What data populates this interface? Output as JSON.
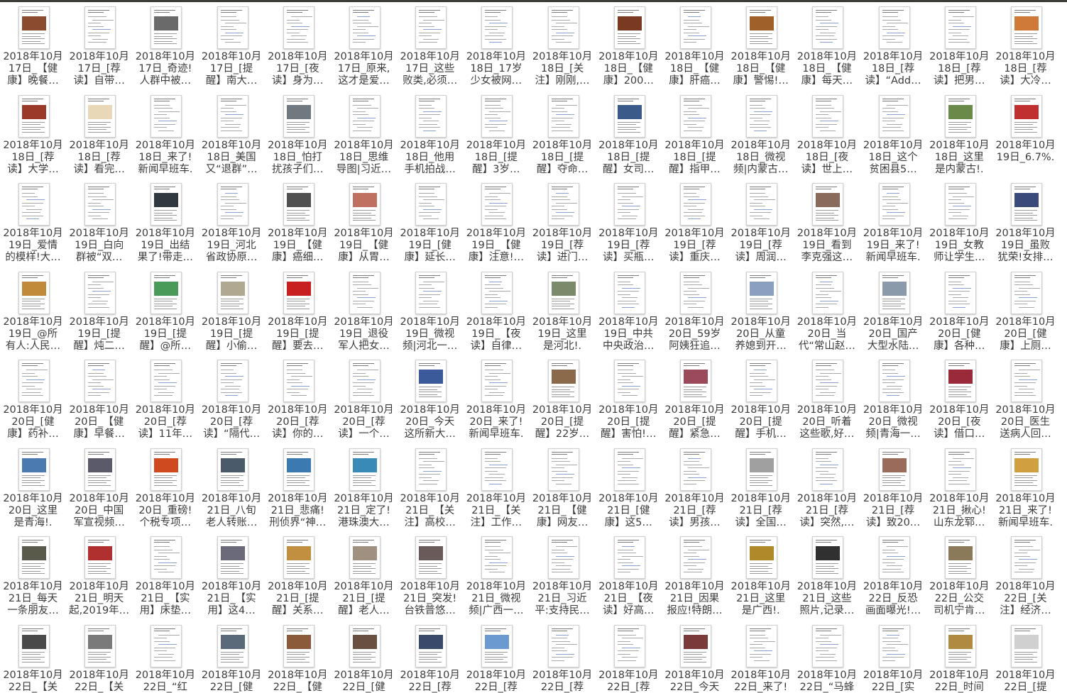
{
  "window": {
    "title": ""
  },
  "files": [
    {
      "name": "2018年10月\n17日_【健\n康】晚餐…",
      "thumb": "photo",
      "color": "#8a4b2f"
    },
    {
      "name": "2018年10月\n17日_[荐\n读】自带…",
      "thumb": "text",
      "color": ""
    },
    {
      "name": "2018年10月\n17日_奇迹!\n人群中被…",
      "thumb": "photo",
      "color": "#6a6a6a"
    },
    {
      "name": "2018年10月\n17日_[提\n醒】南大…",
      "thumb": "text",
      "color": ""
    },
    {
      "name": "2018年10月\n17日_[夜\n读】身为…",
      "thumb": "text",
      "color": ""
    },
    {
      "name": "2018年10月\n17日_原来,\n这才是爱…",
      "thumb": "text",
      "color": ""
    },
    {
      "name": "2018年10月\n17日_这些\n败类,必须…",
      "thumb": "text",
      "color": ""
    },
    {
      "name": "2018年10月\n18日_17岁\n少女被网…",
      "thumb": "text",
      "color": ""
    },
    {
      "name": "2018年10月\n18日_[关\n注】刚刚,…",
      "thumb": "text",
      "color": ""
    },
    {
      "name": "2018年10月\n18日_【健\n康】200…",
      "thumb": "photo",
      "color": "#7a3a22"
    },
    {
      "name": "2018年10月\n18日_【健\n康】肝癌…",
      "thumb": "text",
      "color": ""
    },
    {
      "name": "2018年10月\n18日_【健\n康】警惕!…",
      "thumb": "photo",
      "color": "#a0602a"
    },
    {
      "name": "2018年10月\n18日_【健\n康】每天…",
      "thumb": "text",
      "color": ""
    },
    {
      "name": "2018年10月\n18日_[荐\n读】“Add…",
      "thumb": "text",
      "color": ""
    },
    {
      "name": "2018年10月\n18日_[荐\n读】把男…",
      "thumb": "text",
      "color": ""
    },
    {
      "name": "2018年10月\n18日_[荐\n读】大冷…",
      "thumb": "photo",
      "color": "#d07a3a"
    },
    {
      "name": "2018年10月\n18日_[荐\n读】大学…",
      "thumb": "photo",
      "color": "#9c3a2a"
    },
    {
      "name": "2018年10月\n18日_[荐\n读】看完…",
      "thumb": "photo",
      "color": "#e8d8b8"
    },
    {
      "name": "2018年10月\n18日_来了!\n新闻早班车.",
      "thumb": "text",
      "color": ""
    },
    {
      "name": "2018年10月\n18日_美国\n又“退群”…",
      "thumb": "text",
      "color": ""
    },
    {
      "name": "2018年10月\n18日_怕打\n扰孩子们…",
      "thumb": "photo",
      "color": "#707880"
    },
    {
      "name": "2018年10月\n18日_思维\n导图|习近…",
      "thumb": "text",
      "color": ""
    },
    {
      "name": "2018年10月\n18日_他用\n手机拍战…",
      "thumb": "text",
      "color": ""
    },
    {
      "name": "2018年10月\n18日_[提\n醒】3岁…",
      "thumb": "text",
      "color": ""
    },
    {
      "name": "2018年10月\n18日_[提\n醒】夺命…",
      "thumb": "text",
      "color": ""
    },
    {
      "name": "2018年10月\n18日_[提\n醒】女司…",
      "thumb": "photo",
      "color": "#3a5a8a"
    },
    {
      "name": "2018年10月\n18日_[提\n醒】指甲…",
      "thumb": "text",
      "color": ""
    },
    {
      "name": "2018年10月\n18日_微视\n频|内蒙古…",
      "thumb": "text",
      "color": ""
    },
    {
      "name": "2018年10月\n18日_[夜\n读】世上…",
      "thumb": "text",
      "color": ""
    },
    {
      "name": "2018年10月\n18日_这个\n贫困县5…",
      "thumb": "text",
      "color": ""
    },
    {
      "name": "2018年10月\n18日_这里\n是内蒙古!.",
      "thumb": "photo",
      "color": "#6a8a4a"
    },
    {
      "name": "2018年10月\n19日_6.7%.",
      "thumb": "photo",
      "color": "#c03030"
    },
    {
      "name": "2018年10月\n19日_爱情\n的模样!大…",
      "thumb": "text",
      "color": ""
    },
    {
      "name": "2018年10月\n19日_白向\n群被“双…",
      "thumb": "text",
      "color": ""
    },
    {
      "name": "2018年10月\n19日_出结\n果了!带走…",
      "thumb": "photo",
      "color": "#303840"
    },
    {
      "name": "2018年10月\n19日_河北\n省政协原…",
      "thumb": "text",
      "color": ""
    },
    {
      "name": "2018年10月\n19日_【健\n康】癌细…",
      "thumb": "photo",
      "color": "#505050"
    },
    {
      "name": "2018年10月\n19日_【健\n康】从胃…",
      "thumb": "photo",
      "color": "#c07060"
    },
    {
      "name": "2018年10月\n19日_[健\n康】延长…",
      "thumb": "text",
      "color": ""
    },
    {
      "name": "2018年10月\n19日_【健\n康】注意!…",
      "thumb": "text",
      "color": ""
    },
    {
      "name": "2018年10月\n19日_[荐\n读】进门…",
      "thumb": "text",
      "color": ""
    },
    {
      "name": "2018年10月\n19日_[荐\n读】买瓶…",
      "thumb": "text",
      "color": ""
    },
    {
      "name": "2018年10月\n19日_[荐\n读】重庆…",
      "thumb": "text",
      "color": ""
    },
    {
      "name": "2018年10月\n19日_[荐\n读】周润…",
      "thumb": "text",
      "color": ""
    },
    {
      "name": "2018年10月\n19日_看到\n李克强这…",
      "thumb": "photo",
      "color": "#8a6a5a"
    },
    {
      "name": "2018年10月\n19日_来了!\n新闻早班车.",
      "thumb": "text",
      "color": ""
    },
    {
      "name": "2018年10月\n19日_女教\n师让学生…",
      "thumb": "text",
      "color": ""
    },
    {
      "name": "2018年10月\n19日_虽败\n犹荣!女排…",
      "thumb": "photo",
      "color": "#3a4a7a"
    },
    {
      "name": "2018年10月\n19日_@所\n有人:人民…",
      "thumb": "photo",
      "color": "#c08a3a"
    },
    {
      "name": "2018年10月\n19日_[提\n醒】炖二…",
      "thumb": "text",
      "color": ""
    },
    {
      "name": "2018年10月\n19日_[提\n醒】@所…",
      "thumb": "photo",
      "color": "#4a9a5a"
    },
    {
      "name": "2018年10月\n19日_[提\n醒】小偷…",
      "thumb": "photo",
      "color": "#b0a890"
    },
    {
      "name": "2018年10月\n19日_[提\n醒】要去…",
      "thumb": "photo",
      "color": "#c82020"
    },
    {
      "name": "2018年10月\n19日_退役\n军人把女…",
      "thumb": "text",
      "color": ""
    },
    {
      "name": "2018年10月\n19日_微视\n频|河北一…",
      "thumb": "text",
      "color": ""
    },
    {
      "name": "2018年10月\n19日_【夜\n读】自律…",
      "thumb": "text",
      "color": ""
    },
    {
      "name": "2018年10月\n19日_这里\n是河北!.",
      "thumb": "photo",
      "color": "#7a8a6a"
    },
    {
      "name": "2018年10月\n19日_中共\n中央政治…",
      "thumb": "text",
      "color": ""
    },
    {
      "name": "2018年10月\n20日_59岁\n阿姨狂追…",
      "thumb": "text",
      "color": ""
    },
    {
      "name": "2018年10月\n20日_从童\n养媳到开…",
      "thumb": "photo",
      "color": "#8aa0c0"
    },
    {
      "name": "2018年10月\n20日_当\n代“常山赵…",
      "thumb": "text",
      "color": ""
    },
    {
      "name": "2018年10月\n20日_国产\n大型水陆…",
      "thumb": "photo",
      "color": "#8a9aaa"
    },
    {
      "name": "2018年10月\n20日_[健\n康】各种…",
      "thumb": "text",
      "color": ""
    },
    {
      "name": "2018年10月\n20日_[健\n康】上厕…",
      "thumb": "text",
      "color": ""
    },
    {
      "name": "2018年10月\n20日_[健\n康】药补…",
      "thumb": "text",
      "color": ""
    },
    {
      "name": "2018年10月\n20日_【健\n康】早餐…",
      "thumb": "text",
      "color": ""
    },
    {
      "name": "2018年10月\n20日_[荐\n读】11年…",
      "thumb": "text",
      "color": ""
    },
    {
      "name": "2018年10月\n20日_[荐\n读】“隔代…",
      "thumb": "text",
      "color": ""
    },
    {
      "name": "2018年10月\n20日_[荐\n读】你的…",
      "thumb": "text",
      "color": ""
    },
    {
      "name": "2018年10月\n20日_[荐\n读】一个…",
      "thumb": "text",
      "color": ""
    },
    {
      "name": "2018年10月\n20日_今天\n这所新大…",
      "thumb": "photo",
      "color": "#3a5a9a"
    },
    {
      "name": "2018年10月\n20日_来了!\n新闻早班车.",
      "thumb": "text",
      "color": ""
    },
    {
      "name": "2018年10月\n20日_[提\n醒】22岁…",
      "thumb": "photo",
      "color": "#8a6a4a"
    },
    {
      "name": "2018年10月\n20日_[提\n醒】害怕!…",
      "thumb": "text",
      "color": ""
    },
    {
      "name": "2018年10月\n20日_[提\n醒】紧急…",
      "thumb": "photo",
      "color": "#9a4a5a"
    },
    {
      "name": "2018年10月\n20日_[提\n醒】手机…",
      "thumb": "text",
      "color": ""
    },
    {
      "name": "2018年10月\n20日_听着\n这些歌,好…",
      "thumb": "text",
      "color": ""
    },
    {
      "name": "2018年10月\n20日_微视\n频|青海一…",
      "thumb": "text",
      "color": ""
    },
    {
      "name": "2018年10月\n20日_[夜\n读】借口…",
      "thumb": "photo",
      "color": "#9a2a3a"
    },
    {
      "name": "2018年10月\n20日_医生\n送病人回…",
      "thumb": "text",
      "color": ""
    },
    {
      "name": "2018年10月\n20日_这里\n是青海!.",
      "thumb": "photo",
      "color": "#4a7ab0"
    },
    {
      "name": "2018年10月\n20日_中国\n军宣视频…",
      "thumb": "photo",
      "color": "#5a5a6a"
    },
    {
      "name": "2018年10月\n20日_重磅!\n个税专项…",
      "thumb": "photo",
      "color": "#d04a20"
    },
    {
      "name": "2018年10月\n21日_八旬\n老人转账…",
      "thumb": "photo",
      "color": "#4a5a6a"
    },
    {
      "name": "2018年10月\n21日_悲痛!\n刑侦界“神…",
      "thumb": "photo",
      "color": "#3a7ab0"
    },
    {
      "name": "2018年10月\n21日_定了!\n港珠澳大…",
      "thumb": "photo",
      "color": "#3a8ab8"
    },
    {
      "name": "2018年10月\n21日_【关\n注】高校…",
      "thumb": "text",
      "color": ""
    },
    {
      "name": "2018年10月\n21日_【关\n注】工作…",
      "thumb": "text",
      "color": ""
    },
    {
      "name": "2018年10月\n21日_【健\n康】网友…",
      "thumb": "text",
      "color": ""
    },
    {
      "name": "2018年10月\n21日_[健\n康】这5…",
      "thumb": "text",
      "color": ""
    },
    {
      "name": "2018年10月\n21日_[荐\n读】男孩…",
      "thumb": "text",
      "color": ""
    },
    {
      "name": "2018年10月\n21日_[荐\n读】全国…",
      "thumb": "photo",
      "color": "#a0a0a0"
    },
    {
      "name": "2018年10月\n21日_[荐\n读】突然,…",
      "thumb": "text",
      "color": ""
    },
    {
      "name": "2018年10月\n21日_[荐\n读】致20…",
      "thumb": "photo",
      "color": "#9a6a5a"
    },
    {
      "name": "2018年10月\n21日_揪心!\n山东龙郓…",
      "thumb": "text",
      "color": ""
    },
    {
      "name": "2018年10月\n21日_来了!\n新闻早班车.",
      "thumb": "photo",
      "color": "#d0a040"
    },
    {
      "name": "2018年10月\n21日_每天\n一条朋友…",
      "thumb": "photo",
      "color": "#5a5a4a"
    },
    {
      "name": "2018年10月\n21日_明天\n起,2019年…",
      "thumb": "photo",
      "color": "#b03030"
    },
    {
      "name": "2018年10月\n21日_【实\n用】床垫…",
      "thumb": "text",
      "color": ""
    },
    {
      "name": "2018年10月\n21日_【实\n用】这4…",
      "thumb": "photo",
      "color": "#6a6a7a"
    },
    {
      "name": "2018年10月\n21日_[提\n醒】关系…",
      "thumb": "photo",
      "color": "#c09040"
    },
    {
      "name": "2018年10月\n21日_[提\n醒】老人…",
      "thumb": "photo",
      "color": "#a09080"
    },
    {
      "name": "2018年10月\n21日_突发!\n台铁普悠…",
      "thumb": "photo",
      "color": "#6a5a5a"
    },
    {
      "name": "2018年10月\n21日_微视\n频|广西一…",
      "thumb": "text",
      "color": ""
    },
    {
      "name": "2018年10月\n21日_习近\n平:支持民…",
      "thumb": "text",
      "color": ""
    },
    {
      "name": "2018年10月\n21日_【夜\n读】好高…",
      "thumb": "text",
      "color": ""
    },
    {
      "name": "2018年10月\n21日_因果\n报应!特朗…",
      "thumb": "text",
      "color": ""
    },
    {
      "name": "2018年10月\n21日_这里\n是广西!.",
      "thumb": "photo",
      "color": "#b08a2a"
    },
    {
      "name": "2018年10月\n21日_这些\n照片,记录…",
      "thumb": "photo",
      "color": "#303030"
    },
    {
      "name": "2018年10月\n22日_反恐\n画面曝光!…",
      "thumb": "text",
      "color": ""
    },
    {
      "name": "2018年10月\n22日_公交\n司机宁肯…",
      "thumb": "photo",
      "color": "#8a7a5a"
    },
    {
      "name": "2018年10月\n22日_[关\n注】经济…",
      "thumb": "text",
      "color": ""
    },
    {
      "name": "2018年10月\n22日_【关\n",
      "thumb": "photo",
      "color": "#4a4a4a"
    },
    {
      "name": "2018年10月\n22日_【关\n",
      "thumb": "photo",
      "color": "#7a7a7a"
    },
    {
      "name": "2018年10月\n22日_“红\n",
      "thumb": "text",
      "color": ""
    },
    {
      "name": "2018年10月\n22日_[健\n",
      "thumb": "photo",
      "color": "#5a6a7a"
    },
    {
      "name": "2018年10月\n22日_【健\n",
      "thumb": "photo",
      "color": "#8a5a3a"
    },
    {
      "name": "2018年10月\n22日_[健\n",
      "thumb": "photo",
      "color": "#6a5040"
    },
    {
      "name": "2018年10月\n22日_[荐\n",
      "thumb": "photo",
      "color": "#3a4a6a"
    },
    {
      "name": "2018年10月\n22日_[荐\n",
      "thumb": "photo",
      "color": "#6a9ad0"
    },
    {
      "name": "2018年10月\n22日_[荐\n",
      "thumb": "text",
      "color": ""
    },
    {
      "name": "2018年10月\n22日_[荐\n",
      "thumb": "text",
      "color": ""
    },
    {
      "name": "2018年10月\n22日_今天\n",
      "thumb": "photo",
      "color": "#7a3a3a"
    },
    {
      "name": "2018年10月\n22日_来了!\n",
      "thumb": "text",
      "color": ""
    },
    {
      "name": "2018年10月\n22日_“马蜂\n",
      "thumb": "text",
      "color": ""
    },
    {
      "name": "2018年10月\n22日_[实\n",
      "thumb": "text",
      "color": ""
    },
    {
      "name": "2018年10月\n22日_时间\n",
      "thumb": "photo",
      "color": "#b08a40"
    },
    {
      "name": "2018年10月\n22日_[提\n",
      "thumb": "photo",
      "color": "#d0d0d0"
    }
  ]
}
